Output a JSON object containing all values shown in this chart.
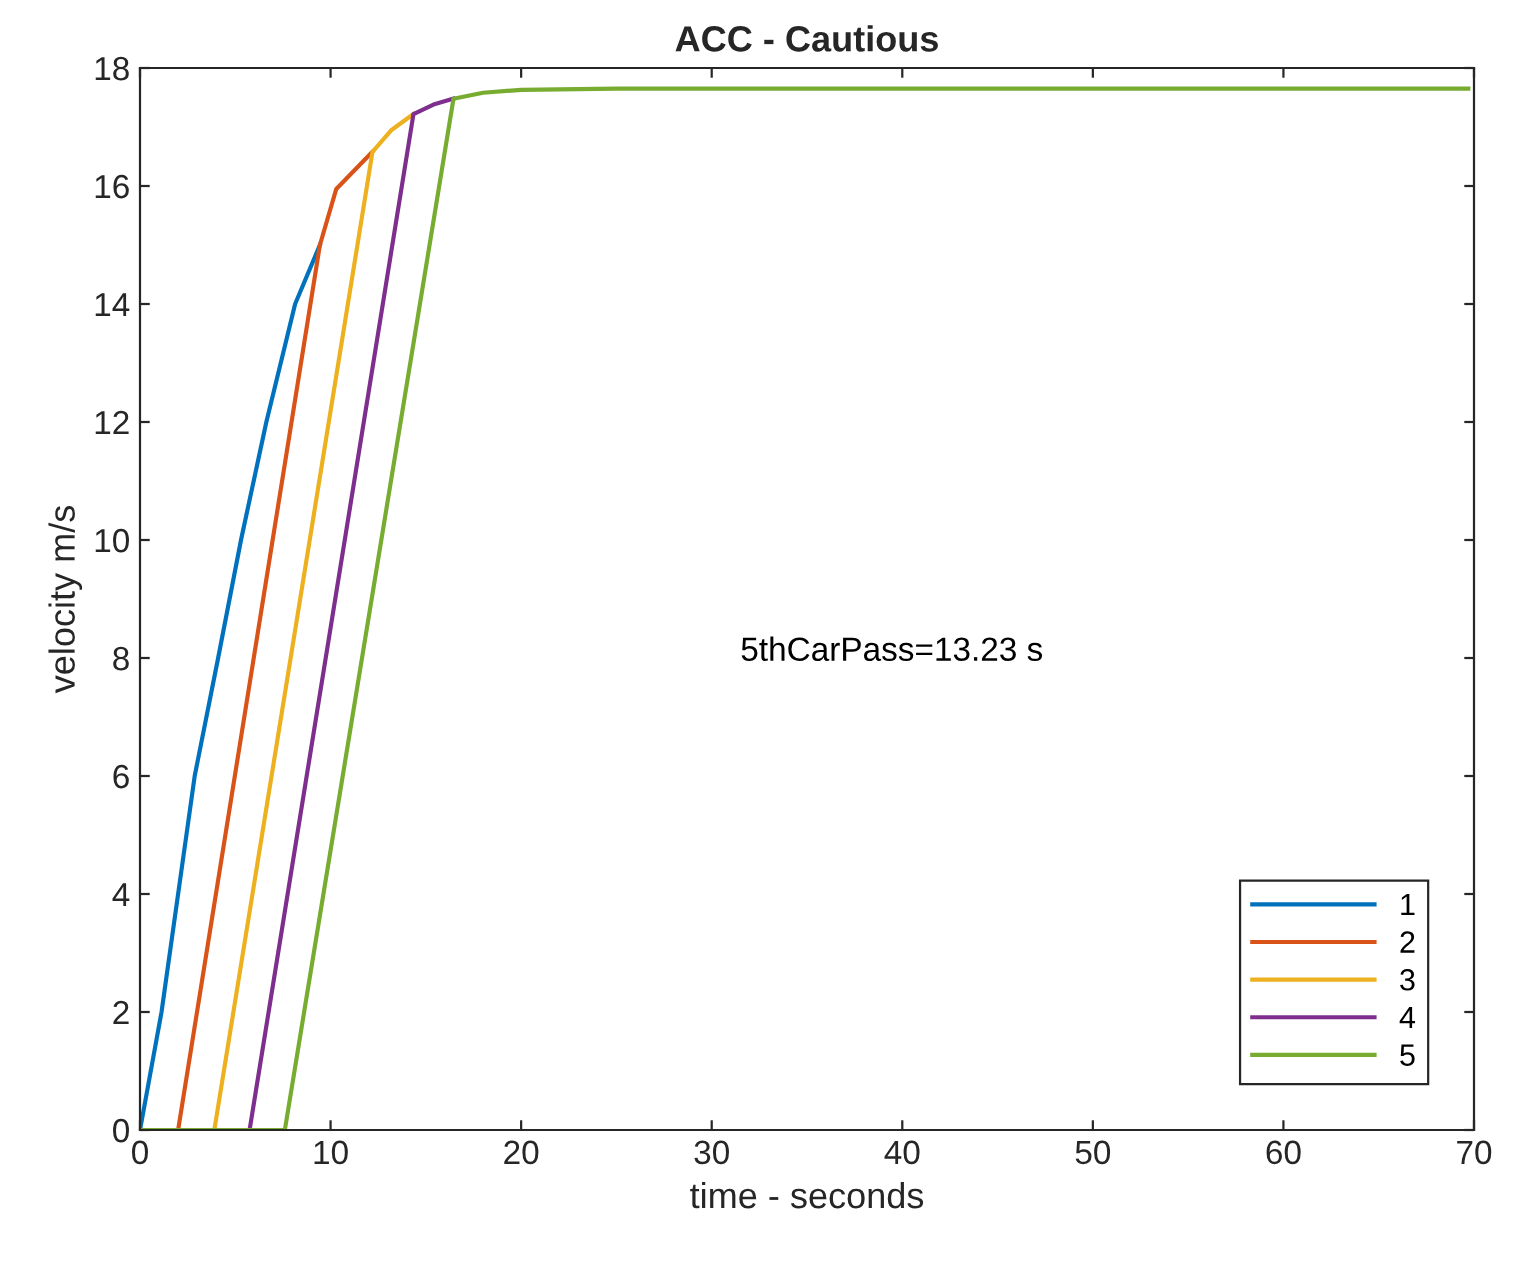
{
  "chart_data": {
    "type": "line",
    "title": "ACC - Cautious",
    "xlabel": "time - seconds",
    "ylabel": "velocity m/s",
    "xlim": [
      0,
      70
    ],
    "ylim": [
      0,
      18
    ],
    "xticks": [
      0,
      10,
      20,
      30,
      40,
      50,
      60,
      70
    ],
    "yticks": [
      0,
      2,
      4,
      6,
      8,
      10,
      12,
      14,
      16,
      18
    ],
    "grid": false,
    "legend": "bottom right",
    "marker": "none",
    "line_style": "solid",
    "annotations": [
      "5thCarPass=13.23 s"
    ],
    "series": [
      {
        "name": "1",
        "color": "#0072bd",
        "x": [
          0,
          1.13,
          2.0,
          2.87,
          4.1,
          5.3,
          6.63,
          8.14,
          9.44
        ],
        "values": [
          0,
          2,
          4,
          6,
          8,
          10,
          12,
          14,
          15
        ]
      },
      {
        "name": "2",
        "color": "#d95319",
        "x": [
          2.0,
          9.44,
          10.3,
          12.2
        ],
        "values": [
          0,
          15,
          15.95,
          16.58
        ]
      },
      {
        "name": "3",
        "color": "#edb120",
        "x": [
          3.9,
          12.2,
          13.2,
          14.35
        ],
        "values": [
          0,
          16.58,
          16.95,
          17.22
        ]
      },
      {
        "name": "4",
        "color": "#7e2f8e",
        "x": [
          5.75,
          14.35,
          15.4,
          16.45
        ],
        "values": [
          0,
          17.22,
          17.38,
          17.48
        ]
      },
      {
        "name": "5",
        "color": "#77ac30",
        "x": [
          0,
          7.6,
          16.45,
          18,
          20,
          25,
          69.7
        ],
        "values": [
          0,
          0,
          17.48,
          17.58,
          17.63,
          17.65,
          17.65
        ]
      }
    ]
  }
}
